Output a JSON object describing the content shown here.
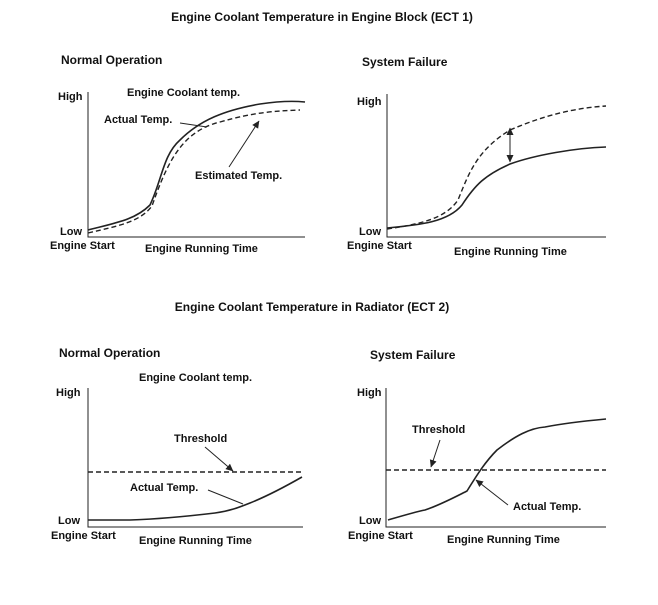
{
  "ect1": {
    "title": "Engine Coolant Temperature in Engine Block (ECT 1)",
    "normal": {
      "heading": "Normal Operation",
      "high": "High",
      "low": "Low",
      "start": "Engine Start",
      "xlabel": "Engine Running Time",
      "caption": "Engine Coolant temp.",
      "actual": "Actual Temp.",
      "estimated": "Estimated Temp."
    },
    "failure": {
      "heading": "System Failure",
      "high": "High",
      "low": "Low",
      "start": "Engine Start",
      "xlabel": "Engine Running Time"
    }
  },
  "ect2": {
    "title": "Engine Coolant Temperature in Radiator (ECT 2)",
    "normal": {
      "heading": "Normal Operation",
      "high": "High",
      "low": "Low",
      "start": "Engine Start",
      "xlabel": "Engine Running Time",
      "caption": "Engine Coolant temp.",
      "threshold": "Threshold",
      "actual": "Actual Temp."
    },
    "failure": {
      "heading": "System Failure",
      "high": "High",
      "low": "Low",
      "start": "Engine Start",
      "xlabel": "Engine Running Time",
      "threshold": "Threshold",
      "actual": "Actual Temp."
    }
  },
  "colors": {
    "line": "#222222",
    "background": "#ffffff"
  }
}
